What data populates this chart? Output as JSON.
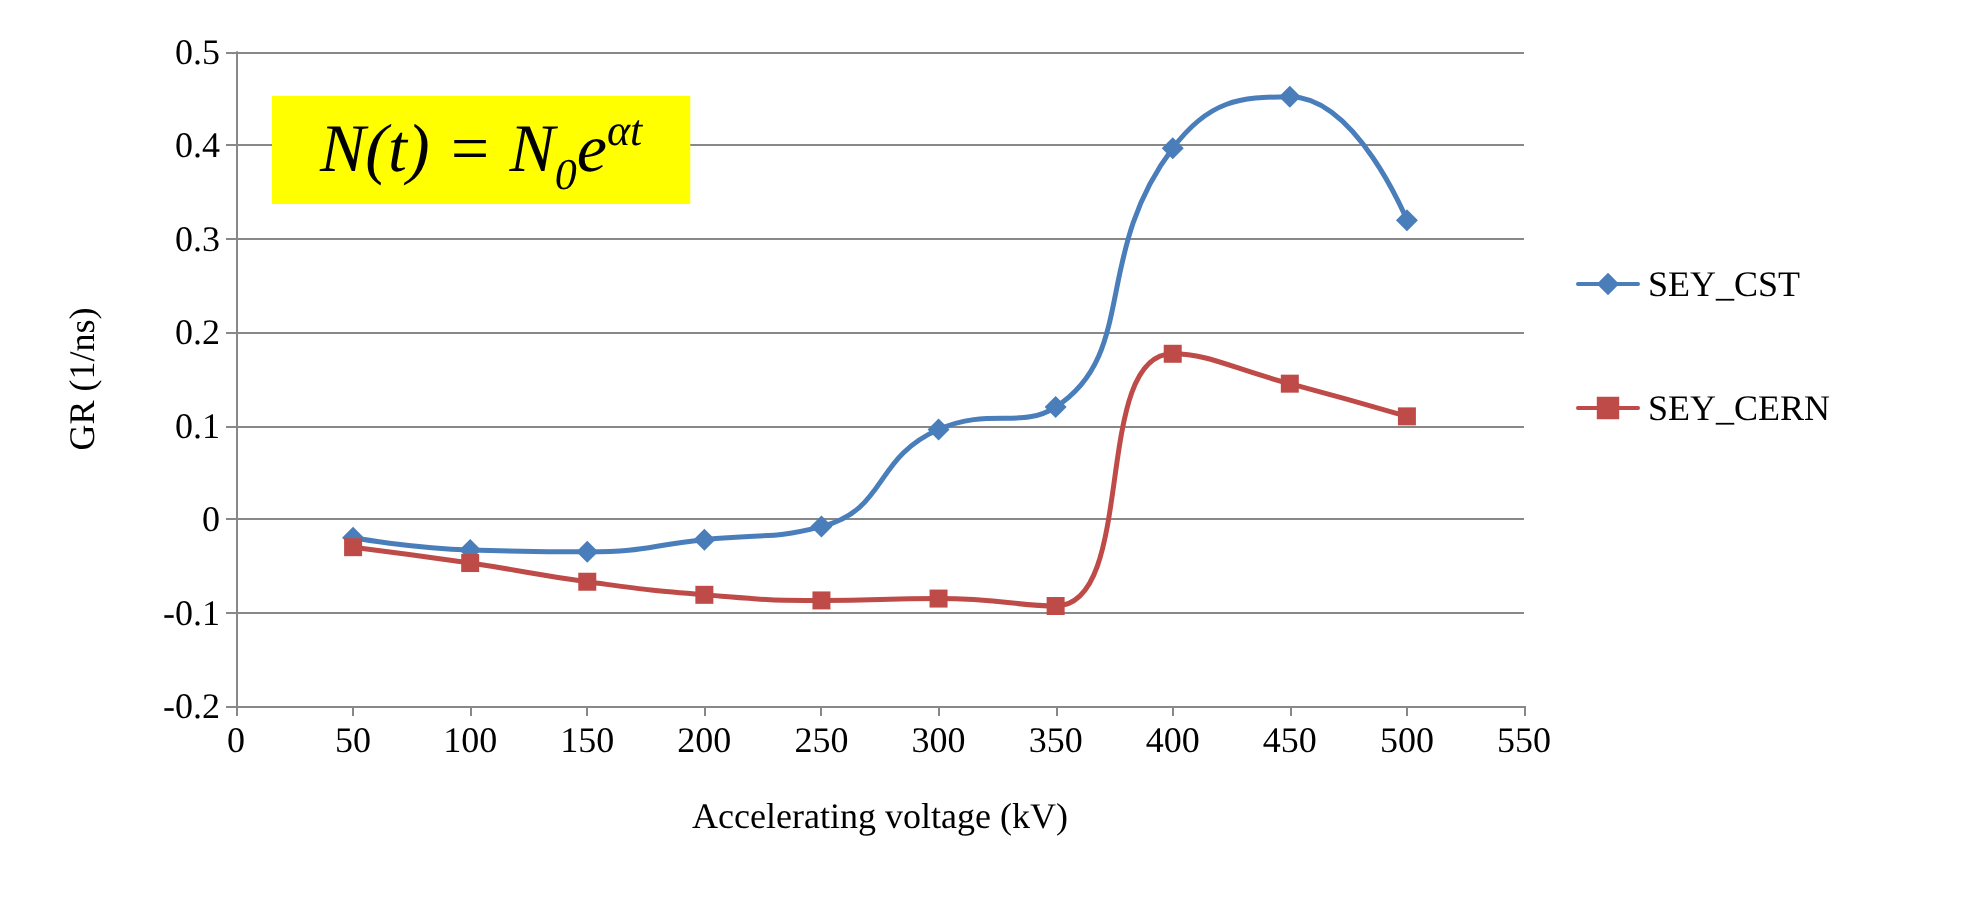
{
  "chart_data": {
    "type": "line",
    "xlabel": "Accelerating voltage (kV)",
    "ylabel": "GR (1/ns)",
    "annotations": [
      "N(t) = N$_{0}$e$^{αt}$"
    ],
    "x": [
      50,
      100,
      150,
      200,
      250,
      300,
      350,
      400,
      450,
      500
    ],
    "series": [
      {
        "name": "SEY_CST",
        "color": "#4a7ebb",
        "marker": "diamond",
        "values": [
          -0.02,
          -0.033,
          -0.035,
          -0.022,
          -0.008,
          0.096,
          0.12,
          0.397,
          0.452,
          0.32
        ]
      },
      {
        "name": "SEY_CERN",
        "color": "#be4b48",
        "marker": "square",
        "values": [
          -0.03,
          -0.047,
          -0.067,
          -0.081,
          -0.087,
          -0.085,
          -0.093,
          0.177,
          0.145,
          0.11
        ]
      }
    ],
    "xlim": [
      0,
      550
    ],
    "xticks": [
      0,
      50,
      100,
      150,
      200,
      250,
      300,
      350,
      400,
      450,
      500,
      550
    ],
    "ylim": [
      -0.2,
      0.5
    ],
    "yticks": [
      -0.2,
      -0.1,
      0,
      0.1,
      0.2,
      0.3,
      0.4,
      0.5
    ],
    "grid": "y",
    "legend": "right"
  }
}
